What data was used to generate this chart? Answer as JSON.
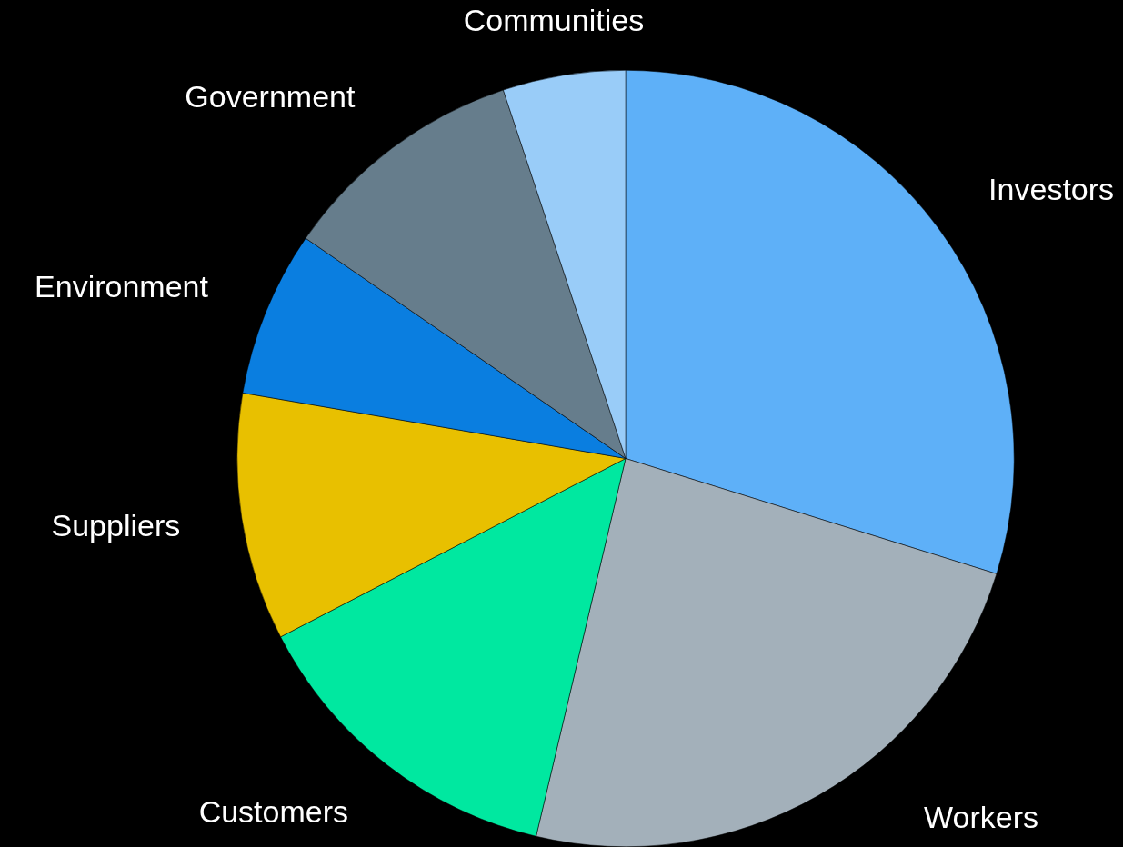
{
  "chart_data": {
    "type": "pie",
    "categories": [
      "Investors",
      "Workers",
      "Customers",
      "Suppliers",
      "Environment",
      "Government",
      "Communities"
    ],
    "values": [
      29.8,
      23.9,
      13.7,
      10.3,
      6.9,
      10.3,
      5.1
    ],
    "colors": [
      "#5eb0f8",
      "#a3b0ba",
      "#00e8a0",
      "#e8c000",
      "#0a7ee0",
      "#667d8c",
      "#99ccf8"
    ]
  }
}
